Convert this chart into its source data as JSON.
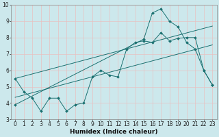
{
  "xlabel": "Humidex (Indice chaleur)",
  "bg_color": "#cce8ec",
  "grid_color": "#e8c0c0",
  "line_color": "#1a7070",
  "spine_color": "#888888",
  "xlim": [
    -0.5,
    23.5
  ],
  "ylim": [
    3,
    10
  ],
  "xticks": [
    0,
    1,
    2,
    3,
    4,
    5,
    6,
    7,
    8,
    9,
    10,
    11,
    12,
    13,
    14,
    15,
    16,
    17,
    18,
    19,
    20,
    21,
    22,
    23
  ],
  "yticks": [
    3,
    4,
    5,
    6,
    7,
    8,
    9,
    10
  ],
  "line1_x": [
    0,
    1,
    2,
    3,
    4,
    5,
    6,
    7,
    8,
    9,
    10,
    11,
    12,
    13,
    14,
    15,
    16,
    17,
    18,
    19,
    20,
    21,
    22,
    23
  ],
  "line1_y": [
    5.5,
    4.7,
    4.3,
    3.5,
    4.3,
    4.3,
    3.5,
    3.9,
    4.0,
    5.6,
    6.0,
    5.7,
    5.6,
    7.3,
    7.7,
    7.8,
    7.7,
    8.3,
    7.8,
    7.95,
    8.0,
    8.0,
    6.0,
    5.1
  ],
  "line2_x": [
    0,
    23
  ],
  "line2_y": [
    4.35,
    7.55
  ],
  "line3_x": [
    0,
    23
  ],
  "line3_y": [
    5.5,
    8.7
  ],
  "line4_x": [
    0,
    15,
    16,
    17,
    18,
    19,
    20,
    21,
    22,
    23
  ],
  "line4_y": [
    3.9,
    7.9,
    9.5,
    9.75,
    9.0,
    8.65,
    7.7,
    7.3,
    6.0,
    5.1
  ],
  "xlabel_fontsize": 6.5,
  "tick_fontsize": 5.5
}
